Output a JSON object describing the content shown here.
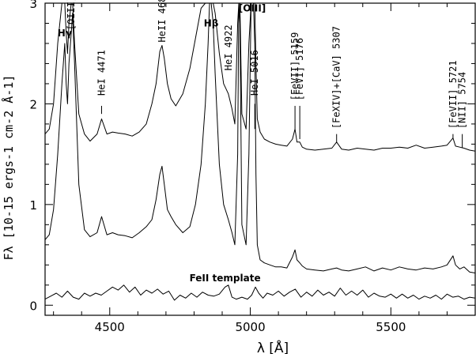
{
  "chart_data": {
    "type": "line",
    "xlabel": "λ [Å]",
    "ylabel": "Fλ [10-15 ergs-1 cm-2 Å-1]",
    "xlim": [
      4270,
      5800
    ],
    "ylim": [
      -0.1,
      3.0
    ],
    "xticks": [
      {
        "value": 4500,
        "label": "4500"
      },
      {
        "value": 5000,
        "label": "5000"
      },
      {
        "value": 5500,
        "label": "5500"
      }
    ],
    "yticks": [
      {
        "value": 0,
        "label": "0"
      },
      {
        "value": 1,
        "label": "1"
      },
      {
        "value": 2,
        "label": "2"
      },
      {
        "value": 3,
        "label": "3"
      }
    ],
    "grid": false,
    "series": [
      {
        "x": [
          4270,
          4285,
          4300,
          4315,
          4330,
          4340,
          4345,
          4350,
          4355,
          4363,
          4368,
          4375,
          4390,
          4410,
          4430,
          4455,
          4471,
          4490,
          4510,
          4530,
          4555,
          4580,
          4605,
          4630,
          4650,
          4665,
          4678,
          4686,
          4694,
          4705,
          4718,
          4735,
          4760,
          4785,
          4805,
          4825,
          4840,
          4850,
          4855,
          4861,
          4868,
          4875,
          4890,
          4905,
          4922,
          4935,
          4945,
          4955,
          4959,
          4963,
          4970,
          4985,
          4995,
          5003,
          5007,
          5011,
          5016,
          5020,
          5025,
          5035,
          5050,
          5070,
          5090,
          5110,
          5130,
          5150,
          5159,
          5166,
          5176,
          5185,
          5200,
          5230,
          5260,
          5290,
          5307,
          5325,
          5350,
          5380,
          5410,
          5440,
          5470,
          5500,
          5530,
          5560,
          5590,
          5620,
          5650,
          5680,
          5700,
          5721,
          5730,
          5745,
          5760,
          5780,
          5800
        ],
        "y": [
          1.7,
          1.75,
          2.0,
          2.6,
          3.0,
          3.0,
          2.7,
          2.5,
          2.8,
          3.0,
          3.0,
          2.6,
          1.9,
          1.7,
          1.63,
          1.7,
          1.85,
          1.7,
          1.72,
          1.71,
          1.7,
          1.68,
          1.72,
          1.8,
          2.0,
          2.2,
          2.52,
          2.58,
          2.45,
          2.2,
          2.05,
          1.98,
          2.1,
          2.35,
          2.65,
          2.95,
          3.0,
          3.0,
          3.0,
          3.0,
          3.0,
          2.9,
          2.5,
          2.2,
          2.1,
          1.95,
          1.8,
          2.8,
          3.0,
          3.0,
          1.9,
          1.75,
          2.6,
          3.0,
          3.0,
          3.0,
          3.0,
          2.4,
          1.85,
          1.72,
          1.65,
          1.62,
          1.6,
          1.59,
          1.58,
          1.65,
          1.75,
          1.62,
          1.62,
          1.57,
          1.55,
          1.54,
          1.55,
          1.56,
          1.62,
          1.55,
          1.54,
          1.56,
          1.55,
          1.54,
          1.56,
          1.56,
          1.57,
          1.56,
          1.59,
          1.56,
          1.57,
          1.58,
          1.59,
          1.66,
          1.58,
          1.57,
          1.56,
          1.54,
          1.53
        ]
      },
      {
        "x": [
          4270,
          4285,
          4300,
          4315,
          4330,
          4340,
          4345,
          4350,
          4355,
          4363,
          4368,
          4375,
          4390,
          4410,
          4430,
          4455,
          4471,
          4490,
          4510,
          4530,
          4555,
          4580,
          4605,
          4630,
          4650,
          4665,
          4678,
          4686,
          4694,
          4705,
          4718,
          4735,
          4760,
          4785,
          4805,
          4825,
          4840,
          4850,
          4855,
          4861,
          4868,
          4875,
          4890,
          4905,
          4922,
          4935,
          4945,
          4955,
          4959,
          4963,
          4970,
          4985,
          4995,
          5003,
          5007,
          5011,
          5016,
          5020,
          5025,
          5035,
          5050,
          5070,
          5090,
          5110,
          5130,
          5150,
          5159,
          5166,
          5176,
          5185,
          5200,
          5230,
          5260,
          5290,
          5307,
          5325,
          5350,
          5380,
          5410,
          5440,
          5470,
          5500,
          5530,
          5560,
          5590,
          5620,
          5650,
          5680,
          5700,
          5721,
          5730,
          5745,
          5760,
          5780,
          5800
        ],
        "y": [
          0.65,
          0.7,
          0.95,
          1.5,
          2.2,
          2.6,
          2.2,
          2.0,
          2.4,
          2.7,
          2.9,
          2.4,
          1.2,
          0.75,
          0.68,
          0.72,
          0.88,
          0.7,
          0.72,
          0.7,
          0.69,
          0.67,
          0.72,
          0.78,
          0.85,
          1.05,
          1.3,
          1.38,
          1.2,
          0.95,
          0.88,
          0.8,
          0.72,
          0.78,
          1.0,
          1.4,
          2.0,
          2.6,
          3.0,
          3.0,
          2.8,
          2.3,
          1.4,
          1.0,
          0.85,
          0.72,
          0.6,
          1.5,
          3.0,
          2.8,
          0.8,
          0.6,
          1.5,
          3.0,
          3.0,
          3.0,
          2.6,
          1.3,
          0.6,
          0.45,
          0.42,
          0.4,
          0.38,
          0.38,
          0.37,
          0.48,
          0.55,
          0.45,
          0.42,
          0.39,
          0.36,
          0.35,
          0.34,
          0.36,
          0.37,
          0.35,
          0.34,
          0.36,
          0.38,
          0.34,
          0.37,
          0.35,
          0.38,
          0.36,
          0.35,
          0.37,
          0.36,
          0.38,
          0.4,
          0.49,
          0.4,
          0.36,
          0.38,
          0.33,
          0.32
        ]
      },
      {
        "x": [
          4270,
          4290,
          4310,
          4330,
          4350,
          4370,
          4390,
          4410,
          4430,
          4450,
          4470,
          4490,
          4510,
          4530,
          4550,
          4570,
          4590,
          4610,
          4630,
          4650,
          4670,
          4690,
          4710,
          4730,
          4750,
          4770,
          4790,
          4810,
          4830,
          4850,
          4870,
          4890,
          4910,
          4922,
          4935,
          4950,
          4970,
          4990,
          5005,
          5018,
          5030,
          5045,
          5060,
          5080,
          5100,
          5120,
          5140,
          5160,
          5180,
          5200,
          5220,
          5240,
          5260,
          5280,
          5300,
          5320,
          5340,
          5360,
          5380,
          5400,
          5420,
          5440,
          5460,
          5480,
          5500,
          5520,
          5540,
          5560,
          5580,
          5600,
          5620,
          5640,
          5660,
          5680,
          5700,
          5720,
          5740,
          5760,
          5780,
          5800
        ],
        "y": [
          0.06,
          0.09,
          0.12,
          0.08,
          0.14,
          0.08,
          0.06,
          0.12,
          0.09,
          0.12,
          0.1,
          0.14,
          0.18,
          0.15,
          0.2,
          0.13,
          0.18,
          0.1,
          0.15,
          0.12,
          0.16,
          0.11,
          0.14,
          0.05,
          0.1,
          0.07,
          0.12,
          0.08,
          0.13,
          0.1,
          0.09,
          0.11,
          0.18,
          0.2,
          0.08,
          0.06,
          0.08,
          0.06,
          0.1,
          0.18,
          0.12,
          0.07,
          0.12,
          0.1,
          0.14,
          0.09,
          0.13,
          0.16,
          0.08,
          0.13,
          0.09,
          0.15,
          0.1,
          0.13,
          0.09,
          0.17,
          0.1,
          0.14,
          0.1,
          0.15,
          0.08,
          0.12,
          0.09,
          0.08,
          0.11,
          0.07,
          0.11,
          0.07,
          0.1,
          0.06,
          0.09,
          0.07,
          0.1,
          0.06,
          0.11,
          0.08,
          0.09,
          0.06,
          0.08,
          0.07
        ]
      }
    ],
    "annotations": [
      {
        "text": "Hγ",
        "x": 4340,
        "y": 2.7,
        "rotate": false
      },
      {
        "text": "[OIII]",
        "x": 4363,
        "y": 2.7,
        "rotate": true
      },
      {
        "text": "HeI 4471",
        "x": 4471,
        "y": 2.05,
        "rotate": true,
        "tick": [
          1.9,
          1.98
        ]
      },
      {
        "text": "HeII 4686",
        "x": 4686,
        "y": 2.58,
        "rotate": true
      },
      {
        "text": "Hβ",
        "x": 4861,
        "y": 2.8,
        "rotate": false
      },
      {
        "text": "HeI 4922",
        "x": 4922,
        "y": 2.3,
        "rotate": true
      },
      {
        "text": "[OIII]",
        "x": 5007,
        "y": 2.95,
        "rotate": false
      },
      {
        "text": "HeI 5016",
        "x": 5016,
        "y": 2.05,
        "rotate": true,
        "tick": [
          1.75,
          2.0
        ]
      },
      {
        "text": "[FeVII] 5159",
        "x": 5159,
        "y": 2.0,
        "rotate": true,
        "tick": [
          1.75,
          1.98
        ]
      },
      {
        "text": "[FeVI] 5176",
        "x": 5176,
        "y": 2.0,
        "rotate": true,
        "tick": [
          1.65,
          1.98
        ]
      },
      {
        "text": "[FeXIV]+[CaV] 5307",
        "x": 5307,
        "y": 1.72,
        "rotate": true,
        "tick": [
          1.62,
          1.7
        ]
      },
      {
        "text": "[FeVII] 5721",
        "x": 5721,
        "y": 1.72,
        "rotate": true,
        "tick": [
          1.66,
          1.7
        ]
      },
      {
        "text": "[NII] 5754",
        "x": 5754,
        "y": 1.72,
        "rotate": true,
        "tick": [
          1.56,
          1.7
        ]
      },
      {
        "text": "FeII template",
        "x": 4910,
        "y": 0.27,
        "rotate": false
      }
    ]
  }
}
